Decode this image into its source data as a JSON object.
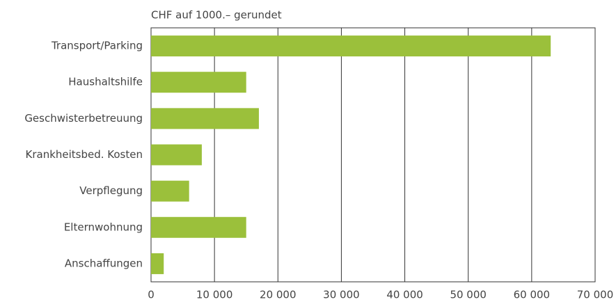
{
  "chart_data": {
    "type": "bar",
    "orientation": "horizontal",
    "title": "CHF auf 1000.– gerundet",
    "categories": [
      "Transport/Parking",
      "Haushaltshilfe",
      "Geschwisterbetreuung",
      "Krankheitsbed. Kosten",
      "Verpflegung",
      "Elternwohnung",
      "Anschaffungen"
    ],
    "values": [
      63000,
      15000,
      17000,
      8000,
      6000,
      15000,
      2000
    ],
    "color": "#9bc03b",
    "xlim": [
      0,
      70000
    ],
    "xticks": [
      0,
      {
        "value": 10000,
        "label": "10 000"
      },
      {
        "value": 20000,
        "label": "20 000"
      },
      {
        "value": 30000,
        "label": "30 000"
      },
      {
        "value": 40000,
        "label": "40 000"
      },
      {
        "value": 50000,
        "label": "50 000"
      },
      {
        "value": 60000,
        "label": "60 000"
      },
      {
        "value": 70000,
        "label": "70 000"
      }
    ],
    "grid": true
  }
}
